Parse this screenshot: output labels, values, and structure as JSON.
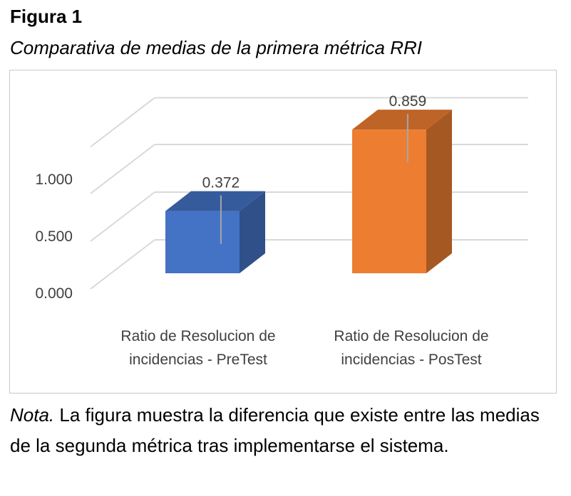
{
  "figure": {
    "label": "Figura 1",
    "caption": "Comparativa de medias de la primera métrica RRI"
  },
  "note": {
    "prefix": "Nota.",
    "text": " La figura muestra la diferencia que existe entre las medias de la segunda métrica tras implementarse el sistema."
  },
  "colors": {
    "series_pretest": "#4472C4",
    "series_postest": "#ED7D31",
    "gridline": "#d9d9d9",
    "axis_text": "#404040"
  },
  "chart_data": {
    "type": "bar",
    "style": "3d-column",
    "categories": [
      [
        "Ratio de Resolucion de",
        "incidencias - PreTest"
      ],
      [
        "Ratio de Resolucion de",
        "incidencias - PosTest"
      ]
    ],
    "values": [
      0.372,
      0.859
    ],
    "data_labels": [
      "0.372",
      "0.859"
    ],
    "bar_colors": [
      "#4472C4",
      "#ED7D31"
    ],
    "yticks": [
      0.0,
      0.5,
      1.0
    ],
    "ytick_labels": [
      "0.000",
      "0.500",
      "1.000"
    ],
    "ylim": [
      0,
      1.0
    ],
    "grid": true,
    "error_bars": true,
    "title": "",
    "xlabel": "",
    "ylabel": ""
  }
}
